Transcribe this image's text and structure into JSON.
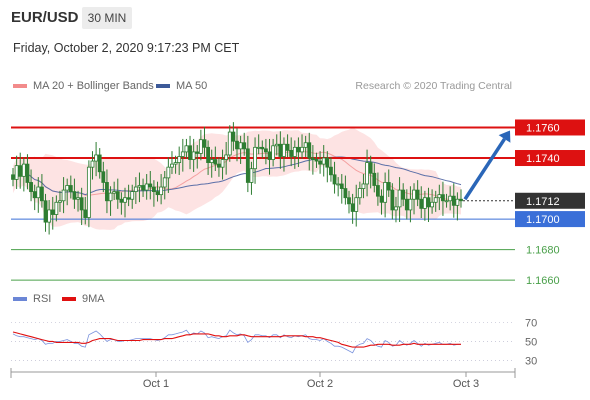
{
  "header": {
    "pair": "EUR/USD",
    "timeframe": "30 MIN"
  },
  "date_line": "Friday, October 2, 2020 9:17:23 PM CET",
  "legend_main": [
    {
      "label": "MA 20 + Bollinger Bands",
      "color": "#f28b8b"
    },
    {
      "label": "MA 50",
      "color": "#3d5a99"
    }
  ],
  "credit": "Research © 2020 Trading Central",
  "legend_rsi": [
    {
      "label": "RSI",
      "color": "#6b86d6"
    },
    {
      "label": "9MA",
      "color": "#e01010"
    }
  ],
  "colors": {
    "resistance": "#dd1111",
    "support": "#3a6fd8",
    "target": "#4aa04a",
    "last": "#333333",
    "arrow": "#2a66b8",
    "band": "#fde3e3",
    "candle": "#2e7d32"
  },
  "chart_data": [
    {
      "type": "candlestick",
      "title": "EUR/USD",
      "ylim": [
        1.1647,
        1.1778
      ],
      "x_ticks": [
        "Oct 1",
        "Oct 2",
        "Oct 3"
      ],
      "levels": [
        {
          "label": "1.1760",
          "value": 1.176,
          "kind": "resistance"
        },
        {
          "label": "1.1740",
          "value": 1.174,
          "kind": "resistance"
        },
        {
          "label": "1.1712",
          "value": 1.1712,
          "kind": "last"
        },
        {
          "label": "1.1700",
          "value": 1.17,
          "kind": "support"
        },
        {
          "label": "1.1680",
          "value": 1.168,
          "kind": "target"
        },
        {
          "label": "1.1660",
          "value": 1.166,
          "kind": "target"
        }
      ],
      "projection": {
        "from": 1.1713,
        "to": 1.1758
      },
      "close": [
        1.1726,
        1.1735,
        1.1728,
        1.1736,
        1.1724,
        1.1718,
        1.1714,
        1.1721,
        1.1712,
        1.1698,
        1.1706,
        1.1703,
        1.1711,
        1.1712,
        1.1719,
        1.1722,
        1.1718,
        1.1713,
        1.1714,
        1.1706,
        1.1701,
        1.1734,
        1.1738,
        1.1742,
        1.1731,
        1.1724,
        1.1712,
        1.1717,
        1.1718,
        1.1713,
        1.1711,
        1.1714,
        1.1713,
        1.1718,
        1.1721,
        1.1722,
        1.1719,
        1.1723,
        1.1721,
        1.1718,
        1.1716,
        1.1721,
        1.1727,
        1.1734,
        1.1736,
        1.1737,
        1.1741,
        1.1744,
        1.1748,
        1.1739,
        1.1744,
        1.1743,
        1.1752,
        1.1747,
        1.1737,
        1.1739,
        1.1736,
        1.1734,
        1.1739,
        1.1742,
        1.1757,
        1.1751,
        1.1746,
        1.175,
        1.1746,
        1.1724,
        1.1733,
        1.1747,
        1.1747,
        1.1746,
        1.1744,
        1.1739,
        1.1748,
        1.1749,
        1.1741,
        1.1749,
        1.1745,
        1.1741,
        1.1747,
        1.1744,
        1.1747,
        1.175,
        1.174,
        1.1739,
        1.1738,
        1.1736,
        1.174,
        1.1734,
        1.1729,
        1.1723,
        1.1723,
        1.172,
        1.1714,
        1.171,
        1.1705,
        1.1714,
        1.172,
        1.1723,
        1.1737,
        1.173,
        1.1722,
        1.1715,
        1.1711,
        1.1724,
        1.1719,
        1.1706,
        1.1708,
        1.1719,
        1.1713,
        1.1706,
        1.1713,
        1.1719,
        1.1713,
        1.1707,
        1.1714,
        1.1708,
        1.1711,
        1.1714,
        1.1716,
        1.1712,
        1.1712,
        1.1715,
        1.1709,
        1.1713,
        1.1712
      ]
    },
    {
      "type": "line",
      "title": "RSI",
      "ylim": [
        22,
        80
      ],
      "y_ticks": [
        70,
        50,
        30
      ],
      "series": [
        {
          "name": "RSI",
          "values": [
            58,
            56,
            55,
            55,
            54,
            53,
            52,
            53,
            51,
            47,
            48,
            48,
            50,
            50,
            51,
            52,
            50,
            48,
            48,
            45,
            44,
            57,
            59,
            61,
            58,
            54,
            50,
            52,
            52,
            50,
            50,
            51,
            51,
            52,
            53,
            53,
            53,
            53,
            53,
            52,
            51,
            52,
            54,
            57,
            57,
            58,
            59,
            60,
            62,
            57,
            59,
            58,
            61,
            59,
            54,
            55,
            54,
            53,
            55,
            56,
            62,
            59,
            57,
            58,
            56,
            49,
            52,
            57,
            57,
            56,
            56,
            54,
            57,
            57,
            54,
            57,
            55,
            54,
            56,
            55,
            56,
            57,
            53,
            52,
            52,
            51,
            53,
            50,
            48,
            45,
            45,
            44,
            42,
            40,
            38,
            45,
            47,
            48,
            53,
            51,
            47,
            45,
            44,
            51,
            49,
            45,
            46,
            51,
            48,
            46,
            48,
            51,
            48,
            45,
            48,
            46,
            47,
            48,
            49,
            47,
            47,
            48,
            46,
            47,
            47
          ]
        },
        {
          "name": "9MA",
          "values": [
            60,
            59,
            58,
            57,
            56,
            55,
            54,
            53,
            52,
            51,
            50,
            50,
            49,
            49,
            49,
            49,
            49,
            49,
            49,
            48,
            48,
            49,
            51,
            52,
            53,
            53,
            53,
            53,
            52,
            51,
            51,
            51,
            51,
            51,
            51,
            51,
            52,
            52,
            52,
            52,
            52,
            52,
            53,
            53,
            53,
            54,
            55,
            56,
            57,
            57,
            58,
            58,
            58,
            58,
            58,
            57,
            56,
            56,
            55,
            55,
            56,
            56,
            56,
            57,
            57,
            56,
            55,
            55,
            55,
            55,
            55,
            55,
            55,
            55,
            55,
            56,
            56,
            56,
            56,
            56,
            56,
            55,
            55,
            55,
            54,
            54,
            53,
            52,
            51,
            50,
            49,
            47,
            46,
            45,
            44,
            44,
            44,
            44,
            45,
            46,
            46,
            47,
            47,
            47,
            47,
            46,
            46,
            46,
            47,
            47,
            47,
            48,
            47,
            47,
            47,
            47,
            47,
            47,
            47,
            47,
            47,
            47,
            47,
            47,
            47
          ]
        }
      ]
    }
  ]
}
